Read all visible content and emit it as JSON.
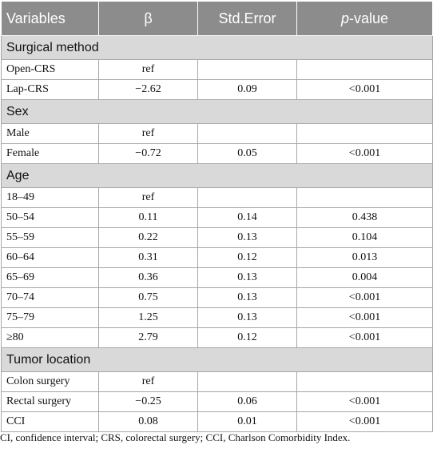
{
  "header": {
    "variables": "Variables",
    "beta": "β",
    "std_error": "Std.Error",
    "p_italic": "p",
    "p_rest": "-value"
  },
  "sections": {
    "surgical": {
      "title": "Surgical method",
      "rows": [
        {
          "label": "Open-CRS",
          "beta": "ref",
          "se": "",
          "p": ""
        },
        {
          "label": "Lap-CRS",
          "beta": "−2.62",
          "se": "0.09",
          "p": "<0.001"
        }
      ]
    },
    "sex": {
      "title": "Sex",
      "rows": [
        {
          "label": "Male",
          "beta": "ref",
          "se": "",
          "p": ""
        },
        {
          "label": "Female",
          "beta": "−0.72",
          "se": "0.05",
          "p": "<0.001"
        }
      ]
    },
    "age": {
      "title": "Age",
      "rows": [
        {
          "label": "18–49",
          "beta": "ref",
          "se": "",
          "p": ""
        },
        {
          "label": "50–54",
          "beta": "0.11",
          "se": "0.14",
          "p": "0.438"
        },
        {
          "label": "55–59",
          "beta": "0.22",
          "se": "0.13",
          "p": "0.104"
        },
        {
          "label": "60–64",
          "beta": "0.31",
          "se": "0.12",
          "p": "0.013"
        },
        {
          "label": "65–69",
          "beta": "0.36",
          "se": "0.13",
          "p": "0.004"
        },
        {
          "label": "70–74",
          "beta": "0.75",
          "se": "0.13",
          "p": "<0.001"
        },
        {
          "label": "75–79",
          "beta": "1.25",
          "se": "0.13",
          "p": "<0.001"
        },
        {
          "label": "≥80",
          "beta": "2.79",
          "se": "0.12",
          "p": "<0.001"
        }
      ]
    },
    "tumor": {
      "title": "Tumor location",
      "rows": [
        {
          "label": "Colon surgery",
          "beta": "ref",
          "se": "",
          "p": ""
        },
        {
          "label": "Rectal surgery",
          "beta": "−0.25",
          "se": "0.06",
          "p": "<0.001"
        },
        {
          "label": "CCI",
          "beta": "0.08",
          "se": "0.01",
          "p": "<0.001"
        }
      ]
    }
  },
  "footnote": "CI, confidence interval; CRS, colorectal surgery; CCI, Charlson Comorbidity Index."
}
